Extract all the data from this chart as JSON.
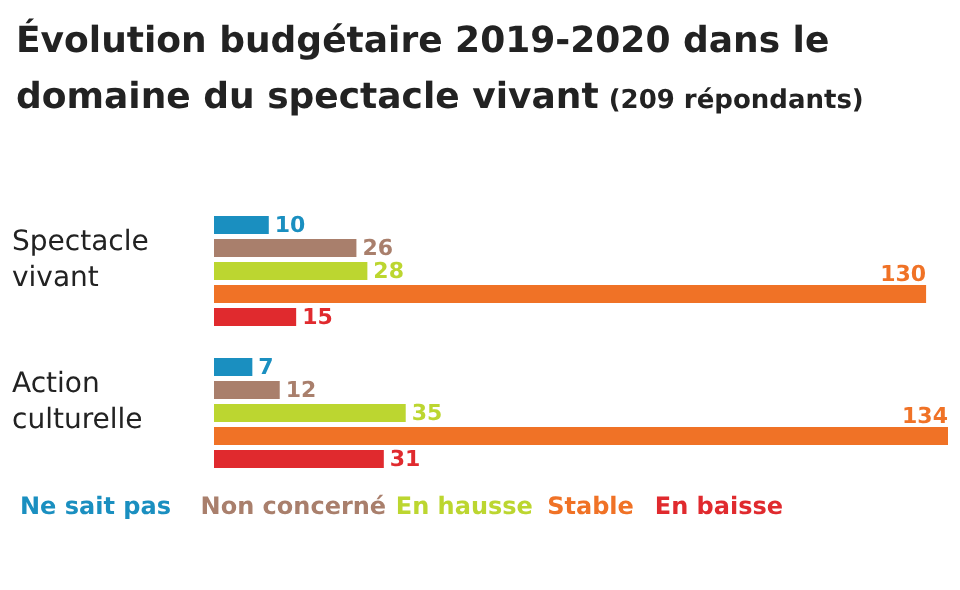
{
  "chart_data": {
    "type": "bar",
    "orientation": "horizontal",
    "title": "Évolution budgétaire 2019-2020 dans le domaine du spectacle vivant",
    "subtitle": "(209 répondants)",
    "categories": [
      "Spectacle vivant",
      "Action culturelle"
    ],
    "series": [
      {
        "name": "Ne sait pas",
        "color": "#1a8fc0",
        "values": [
          10,
          7
        ]
      },
      {
        "name": "Non concerné",
        "color": "#a97f6c",
        "values": [
          26,
          12
        ]
      },
      {
        "name": "En hausse",
        "color": "#bcd630",
        "values": [
          28,
          35
        ]
      },
      {
        "name": "Stable",
        "color": "#f07226",
        "values": [
          130,
          134
        ]
      },
      {
        "name": "En baisse",
        "color": "#e02a2e",
        "values": [
          15,
          31
        ]
      }
    ],
    "data_labels": true,
    "legend": "bottom"
  }
}
